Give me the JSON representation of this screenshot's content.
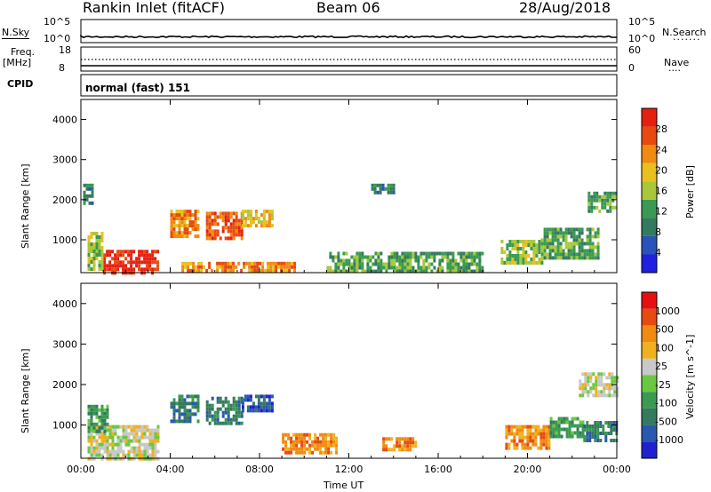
{
  "header": {
    "station": "Rankin Inlet (fitACF)",
    "beam": "Beam 06",
    "date": "28/Aug/2018"
  },
  "noise_panel": {
    "left_label": "N.Sky",
    "right_label": "N.Search",
    "left_ticks": [
      "10^5",
      "10^0"
    ],
    "right_ticks": [
      "10^5",
      "10^0"
    ]
  },
  "freq_panel": {
    "left_label_1": "Freq.",
    "left_label_2": "[MHz]",
    "right_label": "Nave",
    "left_ticks": [
      "18",
      "8"
    ],
    "right_ticks": [
      "60",
      "0"
    ]
  },
  "cpid": {
    "label": "CPID",
    "value": "normal (fast) 151"
  },
  "x_axis": {
    "label": "Time UT",
    "ticks": [
      "00:00",
      "04:00",
      "08:00",
      "12:00",
      "16:00",
      "20:00",
      "00:00"
    ]
  },
  "chart_data": [
    {
      "type": "heatmap",
      "ylabel": "Slant Range [km]",
      "y_ticks": [
        1000,
        2000,
        3000,
        4000
      ],
      "ylim": [
        180,
        4500
      ],
      "xlim_hours": [
        0,
        24
      ],
      "colorbar": {
        "label": "Power [dB]",
        "ticks": [
          "28",
          "24",
          "20",
          "16",
          "12",
          "8",
          "4"
        ],
        "colors": [
          "#2020e0",
          "#2a52b8",
          "#347a5e",
          "#3a9a52",
          "#a8c83a",
          "#e8c020",
          "#f08a10",
          "#e64a10",
          "#e62010"
        ]
      },
      "regions": [
        {
          "t0": 1.0,
          "t1": 3.5,
          "r0": 200,
          "r1": 750,
          "level": 8
        },
        {
          "t0": 0.3,
          "t1": 1.0,
          "r0": 250,
          "r1": 1200,
          "level": 4
        },
        {
          "t0": 0.1,
          "t1": 0.5,
          "r0": 1900,
          "r1": 2400,
          "level": 2
        },
        {
          "t0": 4.0,
          "t1": 5.3,
          "r0": 1050,
          "r1": 1750,
          "level": 6
        },
        {
          "t0": 5.6,
          "t1": 7.2,
          "r0": 1000,
          "r1": 1700,
          "level": 7
        },
        {
          "t0": 7.2,
          "t1": 8.6,
          "r0": 1350,
          "r1": 1750,
          "level": 5
        },
        {
          "t0": 4.5,
          "t1": 9.6,
          "r0": 200,
          "r1": 450,
          "level": 6
        },
        {
          "t0": 13.0,
          "t1": 14.0,
          "r0": 2150,
          "r1": 2400,
          "level": 2
        },
        {
          "t0": 11.0,
          "t1": 18.0,
          "r0": 200,
          "r1": 700,
          "level": 3
        },
        {
          "t0": 18.8,
          "t1": 20.6,
          "r0": 400,
          "r1": 1000,
          "level": 4
        },
        {
          "t0": 20.6,
          "t1": 23.2,
          "r0": 550,
          "r1": 1300,
          "level": 3
        },
        {
          "t0": 22.7,
          "t1": 24.0,
          "r0": 1700,
          "r1": 2200,
          "level": 3
        }
      ]
    },
    {
      "type": "heatmap",
      "ylabel": "Slant Range [km]",
      "y_ticks": [
        1000,
        2000,
        3000,
        4000
      ],
      "ylim": [
        180,
        4500
      ],
      "xlim_hours": [
        0,
        24
      ],
      "colorbar": {
        "label": "Velocity [m s^-1]",
        "ticks": [
          "1000",
          "500",
          "100",
          "25",
          "-25",
          "-100",
          "-500",
          "-1000"
        ],
        "colors": [
          "#2020d0",
          "#2a58b0",
          "#347a5e",
          "#3a9a52",
          "#6ac840",
          "#c8c8c8",
          "#f0b020",
          "#f08a10",
          "#e64a10",
          "#e61010"
        ]
      },
      "regions": [
        {
          "t0": 0.3,
          "t1": 3.5,
          "r0": 200,
          "r1": 1000,
          "level": 5
        },
        {
          "t0": 0.3,
          "t1": 1.2,
          "r0": 800,
          "r1": 1500,
          "level": 3
        },
        {
          "t0": 4.0,
          "t1": 5.3,
          "r0": 1050,
          "r1": 1750,
          "level": 2
        },
        {
          "t0": 5.6,
          "t1": 7.2,
          "r0": 1000,
          "r1": 1700,
          "level": 2
        },
        {
          "t0": 7.2,
          "t1": 8.6,
          "r0": 1350,
          "r1": 1750,
          "level": 1
        },
        {
          "t0": 9.0,
          "t1": 11.5,
          "r0": 350,
          "r1": 800,
          "level": 7
        },
        {
          "t0": 13.5,
          "t1": 15.0,
          "r0": 400,
          "r1": 700,
          "level": 7
        },
        {
          "t0": 19.0,
          "t1": 21.0,
          "r0": 400,
          "r1": 1000,
          "level": 7
        },
        {
          "t0": 21.0,
          "t1": 22.5,
          "r0": 700,
          "r1": 1200,
          "level": 3
        },
        {
          "t0": 22.5,
          "t1": 24.0,
          "r0": 600,
          "r1": 1100,
          "level": 2
        },
        {
          "t0": 22.3,
          "t1": 24.0,
          "r0": 1700,
          "r1": 2300,
          "level": 5
        }
      ]
    }
  ]
}
